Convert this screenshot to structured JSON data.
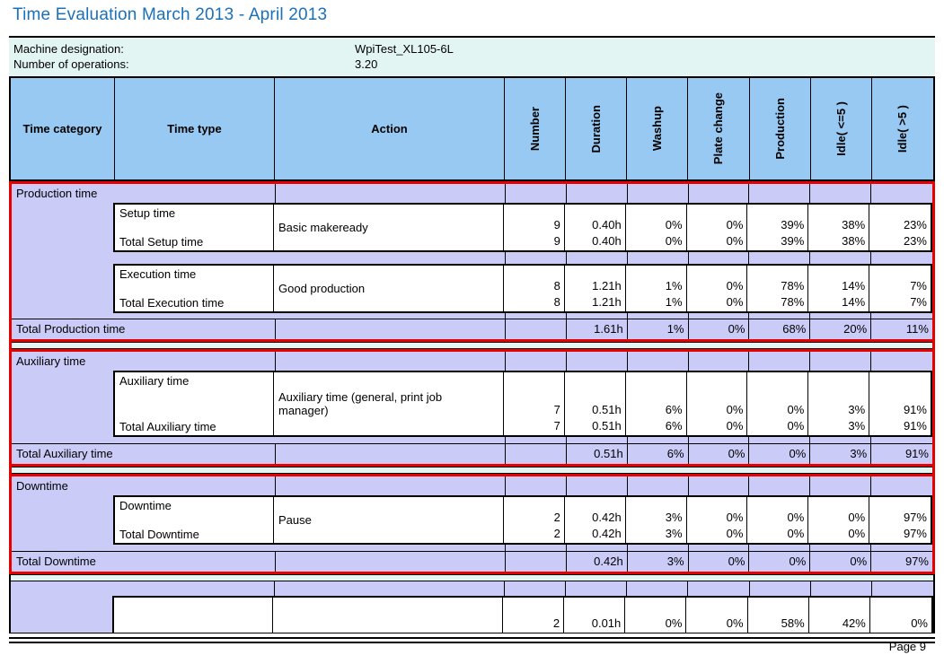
{
  "title": "Time Evaluation March 2013 - April 2013",
  "info": {
    "machine_label": "Machine designation:",
    "machine_value": "WpiTest_XL105-6L",
    "operations_label": "Number of operations:",
    "operations_value": "3.20"
  },
  "table": {
    "headers": {
      "time_category": "Time category",
      "time_type": "Time type",
      "action": "Action",
      "rotated": [
        "Number",
        "Duration",
        "Washup",
        "Plate change",
        "Production",
        "Idle( <=5 )",
        "Idle( >5 )"
      ]
    },
    "sections": [
      {
        "category": "Production time",
        "boxes": [
          {
            "type_label": "Setup time",
            "total_label": "Total Setup time",
            "action": "Basic makeready",
            "action_values": [
              "9",
              "0.40h",
              "0%",
              "0%",
              "39%",
              "38%",
              "23%"
            ],
            "total_values": [
              "9",
              "0.40h",
              "0%",
              "0%",
              "39%",
              "38%",
              "23%"
            ]
          },
          {
            "type_label": "Execution time",
            "total_label": "Total Execution time",
            "action": "Good production",
            "action_values": [
              "8",
              "1.21h",
              "1%",
              "0%",
              "78%",
              "14%",
              "7%"
            ],
            "total_values": [
              "8",
              "1.21h",
              "1%",
              "0%",
              "78%",
              "14%",
              "7%"
            ]
          }
        ],
        "total_label": "Total Production time",
        "total_values": [
          "",
          "1.61h",
          "1%",
          "0%",
          "68%",
          "20%",
          "11%"
        ]
      },
      {
        "category": "Auxiliary time",
        "boxes": [
          {
            "type_label": "Auxiliary time",
            "total_label": "Total Auxiliary time",
            "action": "Auxiliary time (general, print job manager)",
            "action_values": [
              "7",
              "0.51h",
              "6%",
              "0%",
              "0%",
              "3%",
              "91%"
            ],
            "total_values": [
              "7",
              "0.51h",
              "6%",
              "0%",
              "0%",
              "3%",
              "91%"
            ]
          }
        ],
        "total_label": "Total Auxiliary time",
        "total_values": [
          "",
          "0.51h",
          "6%",
          "0%",
          "0%",
          "3%",
          "91%"
        ]
      },
      {
        "category": "Downtime",
        "boxes": [
          {
            "type_label": "Downtime",
            "total_label": "Total Downtime",
            "action": "Pause",
            "action_values": [
              "2",
              "0.42h",
              "3%",
              "0%",
              "0%",
              "0%",
              "97%"
            ],
            "total_values": [
              "2",
              "0.42h",
              "3%",
              "0%",
              "0%",
              "0%",
              "97%"
            ]
          }
        ],
        "total_label": "Total Downtime",
        "total_values": [
          "",
          "0.42h",
          "3%",
          "0%",
          "0%",
          "0%",
          "97%"
        ]
      }
    ],
    "partial_section": {
      "values": [
        "2",
        "0.01h",
        "0%",
        "0%",
        "58%",
        "42%",
        "0%"
      ]
    }
  },
  "footer": {
    "page": "Page 9"
  },
  "colors": {
    "title_blue": "#1B70B8",
    "header_blue": "#97C9F2",
    "lavender": "#CBCBF8",
    "cyan": "#E2F5F2",
    "highlight_red": "#E80000"
  }
}
